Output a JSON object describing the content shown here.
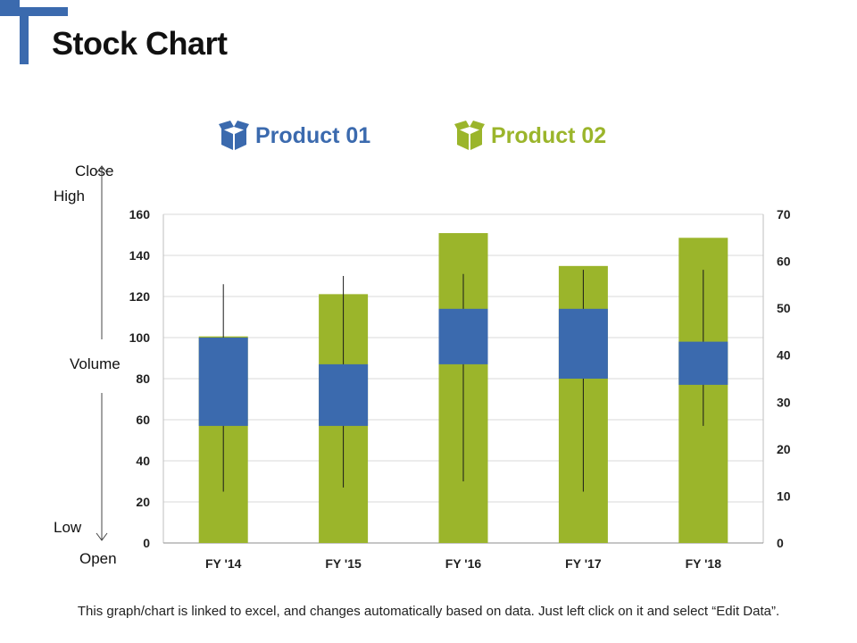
{
  "page": {
    "title": "Stock Chart",
    "footer": "This graph/chart is linked to excel, and changes automatically based on data. Just left click on it and select “Edit Data”."
  },
  "colors": {
    "product01": "#3B6AAE",
    "product02": "#9BB52B",
    "corner": "#3B6AAE"
  },
  "side_labels": {
    "close": "Close",
    "high": "High",
    "volume": "Volume",
    "low": "Low",
    "open": "Open"
  },
  "chart_data": {
    "type": "stock",
    "categories": [
      "FY '14",
      "FY '15",
      "FY '16",
      "FY '17",
      "FY '18"
    ],
    "legend": [
      "Product 01",
      "Product 02"
    ],
    "y_left": {
      "min": 0,
      "max": 160,
      "step": 20,
      "ticks": [
        "0",
        "20",
        "40",
        "60",
        "80",
        "100",
        "120",
        "140",
        "160"
      ]
    },
    "y_right": {
      "min": 0,
      "max": 70,
      "step": 10,
      "ticks": [
        "0",
        "10",
        "20",
        "30",
        "40",
        "50",
        "60",
        "70"
      ]
    },
    "volume": {
      "name": "Product 02",
      "axis": "right",
      "values": [
        44,
        53,
        66,
        59,
        65
      ]
    },
    "ohlc": {
      "name": "Product 01",
      "axis": "left",
      "open": [
        57,
        57,
        87,
        80,
        77
      ],
      "high": [
        126,
        130,
        131,
        133,
        133
      ],
      "low": [
        25,
        27,
        30,
        25,
        57
      ],
      "close": [
        100,
        87,
        114,
        114,
        98
      ]
    },
    "grid": true
  }
}
